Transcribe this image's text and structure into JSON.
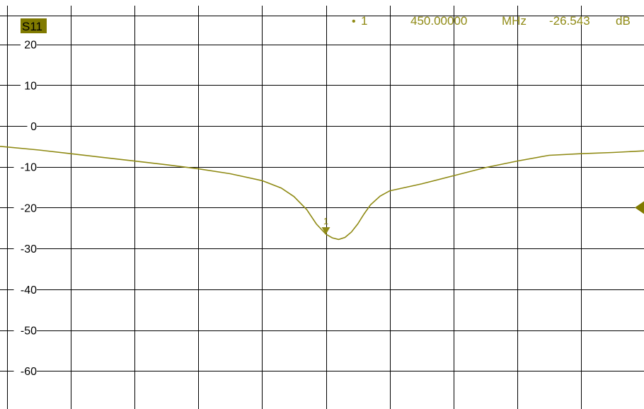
{
  "trace": {
    "label": "S11",
    "label_bg_color": "#807a00",
    "trace_color": "#8f8a14",
    "reference_marker_icon": "triangle-left-icon"
  },
  "marker": {
    "id": "1",
    "bullet": "•",
    "frequency": "450.00000",
    "frequency_unit": "MHz",
    "value": "-26.543",
    "value_unit": "dB",
    "marker_icon": "triangle-down-icon"
  },
  "chart_data": {
    "type": "line",
    "title": "",
    "xlabel": "",
    "ylabel": "",
    "ylim": [
      -70,
      27
    ],
    "xlim": [
      0,
      10
    ],
    "grid": true,
    "y_ticks": [
      20,
      10,
      0,
      -10,
      -20,
      -30,
      -40,
      -50,
      -60
    ],
    "y_tick_labels": [
      "20",
      "10",
      "0",
      "-10",
      "-20",
      "-30",
      "-40",
      "-50",
      "-60"
    ],
    "reference_level": -20,
    "marker_x": 5.0,
    "marker_y": -26.543,
    "series": [
      {
        "x": [
          0,
          0.5,
          1.0,
          1.5,
          2.0,
          2.5,
          3.0,
          3.5,
          4.0,
          4.3,
          4.5,
          4.7,
          4.85,
          5.0,
          5.1,
          5.2,
          5.3,
          5.4,
          5.5,
          5.6,
          5.7,
          5.85,
          6.0,
          6.5,
          7.0,
          7.5,
          8.0,
          8.5,
          9.0,
          9.5,
          10.0
        ],
        "y": [
          -5.0,
          -5.9,
          -6.8,
          -7.7,
          -8.6,
          -9.5,
          -10.5,
          -11.7,
          -13.4,
          -15.2,
          -17.3,
          -20.5,
          -24.0,
          -26.5,
          -27.4,
          -27.8,
          -27.3,
          -26.0,
          -24.0,
          -21.5,
          -19.3,
          -17.2,
          -15.9,
          -14.2,
          -12.2,
          -10.2,
          -8.6,
          -7.2,
          -6.8,
          -6.5,
          -6.1
        ]
      }
    ]
  }
}
